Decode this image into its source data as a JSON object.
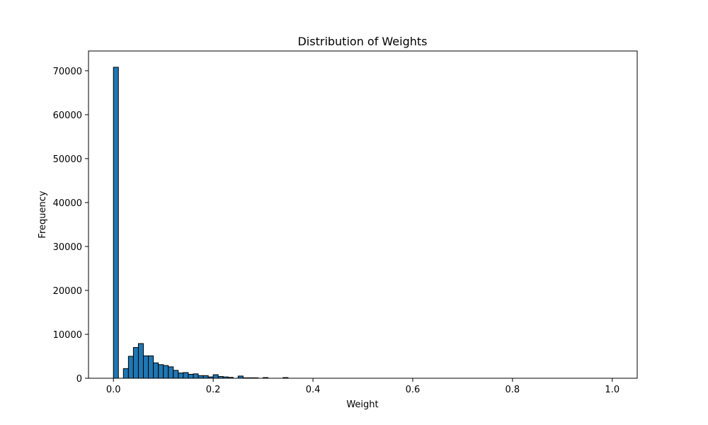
{
  "chart_data": {
    "type": "bar",
    "title": "Distribution of Weights",
    "xlabel": "Weight",
    "ylabel": "Frequency",
    "xlim": [
      -0.05,
      1.05
    ],
    "ylim": [
      0,
      74500
    ],
    "xticks": [
      0.0,
      0.2,
      0.4,
      0.6,
      0.8,
      1.0
    ],
    "xtick_labels": [
      "0.0",
      "0.2",
      "0.4",
      "0.6",
      "0.8",
      "1.0"
    ],
    "yticks": [
      0,
      10000,
      20000,
      30000,
      40000,
      50000,
      60000,
      70000
    ],
    "ytick_labels": [
      "0",
      "10000",
      "20000",
      "30000",
      "40000",
      "50000",
      "60000",
      "70000"
    ],
    "bin_width": 0.01,
    "bins_start": 0.0,
    "bar_color": "#1f77b4",
    "edge_color": "#000000",
    "values": [
      70800,
      0,
      2200,
      5000,
      7000,
      7900,
      5100,
      5100,
      3500,
      3100,
      2900,
      2600,
      1800,
      1200,
      1300,
      900,
      1000,
      600,
      600,
      300,
      800,
      400,
      300,
      200,
      0,
      500,
      100,
      100,
      100,
      0,
      150,
      0,
      0,
      0,
      150,
      0,
      0,
      0,
      0,
      0,
      0,
      0,
      0,
      0,
      0,
      0,
      0,
      0,
      0,
      0,
      0,
      0,
      0,
      0,
      0,
      0,
      0,
      0,
      0,
      0,
      0,
      0,
      0,
      0,
      0,
      0,
      0,
      0,
      0,
      0,
      0,
      0,
      0,
      0,
      0,
      0,
      0,
      0,
      0,
      0,
      0,
      0,
      0,
      0,
      0,
      0,
      0,
      0,
      0,
      0,
      0,
      0,
      0,
      0,
      0,
      0,
      0,
      0,
      0,
      0
    ]
  }
}
